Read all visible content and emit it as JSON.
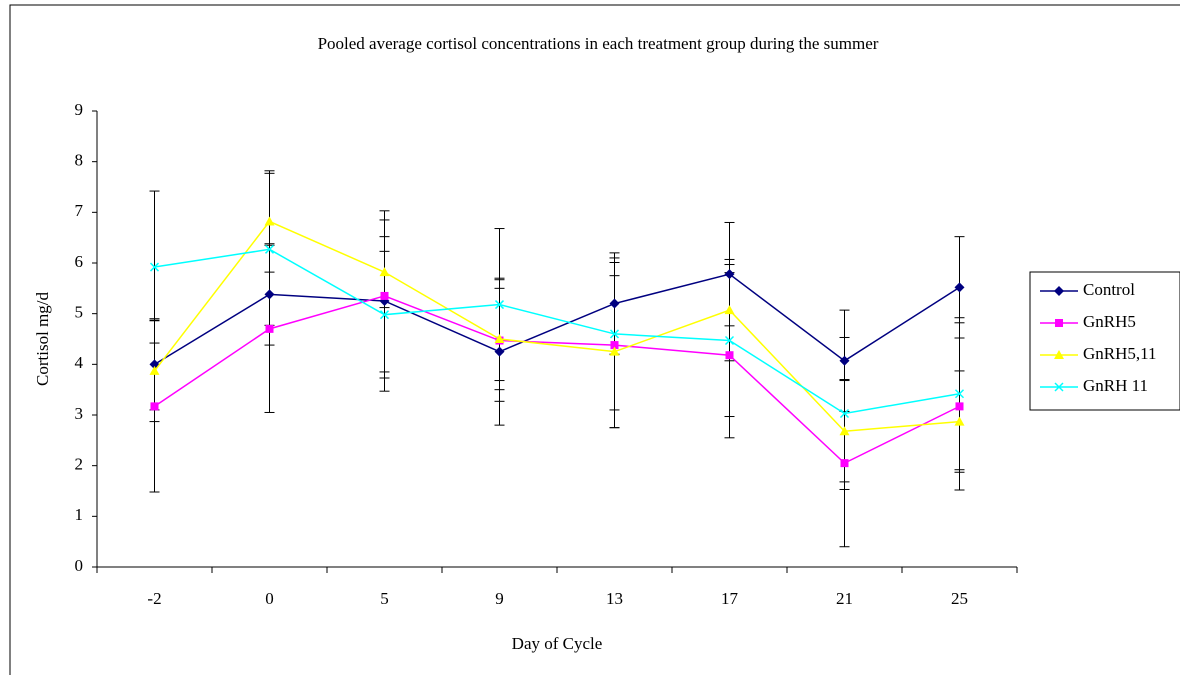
{
  "chart_data": {
    "type": "line",
    "title": "Pooled average cortisol concentrations in each treatment group during the summer",
    "x_label": "Day of Cycle",
    "y_label": "Cortisol mg/d",
    "categories": [
      "-2",
      "0",
      "5",
      "9",
      "13",
      "17",
      "21",
      "25"
    ],
    "ylim": [
      0,
      9
    ],
    "yticks": [
      0,
      1,
      2,
      3,
      4,
      5,
      6,
      7,
      8,
      9
    ],
    "legend": "right",
    "series": [
      {
        "name": "Control",
        "color": "#000080",
        "marker": "diamond",
        "values": [
          4.0,
          5.38,
          5.25,
          4.25,
          5.2,
          5.78,
          4.07,
          5.52
        ],
        "errors": [
          0.9,
          1.0,
          1.78,
          1.45,
          1.0,
          1.02,
          1.0,
          1.0
        ]
      },
      {
        "name": "GnRH5",
        "color": "#ff00ff",
        "marker": "square",
        "values": [
          3.17,
          4.7,
          5.35,
          4.47,
          4.38,
          4.18,
          2.05,
          3.17
        ],
        "errors": [
          1.69,
          1.65,
          1.5,
          1.2,
          1.63,
          1.63,
          1.65,
          1.65
        ]
      },
      {
        "name": "GnRH5,11",
        "color": "#ffff00",
        "marker": "triangle",
        "values": [
          3.87,
          6.82,
          5.82,
          4.5,
          4.25,
          5.07,
          2.68,
          2.87
        ],
        "errors": [
          1.0,
          1.0,
          0.7,
          1.0,
          1.5,
          1.0,
          1.0,
          1.0
        ]
      },
      {
        "name": "GnRH 11",
        "color": "#00ffff",
        "marker": "x",
        "values": [
          5.92,
          6.27,
          4.98,
          5.18,
          4.6,
          4.47,
          3.03,
          3.42
        ],
        "errors": [
          1.5,
          1.5,
          1.25,
          1.5,
          1.5,
          1.5,
          1.5,
          1.5
        ]
      }
    ]
  }
}
